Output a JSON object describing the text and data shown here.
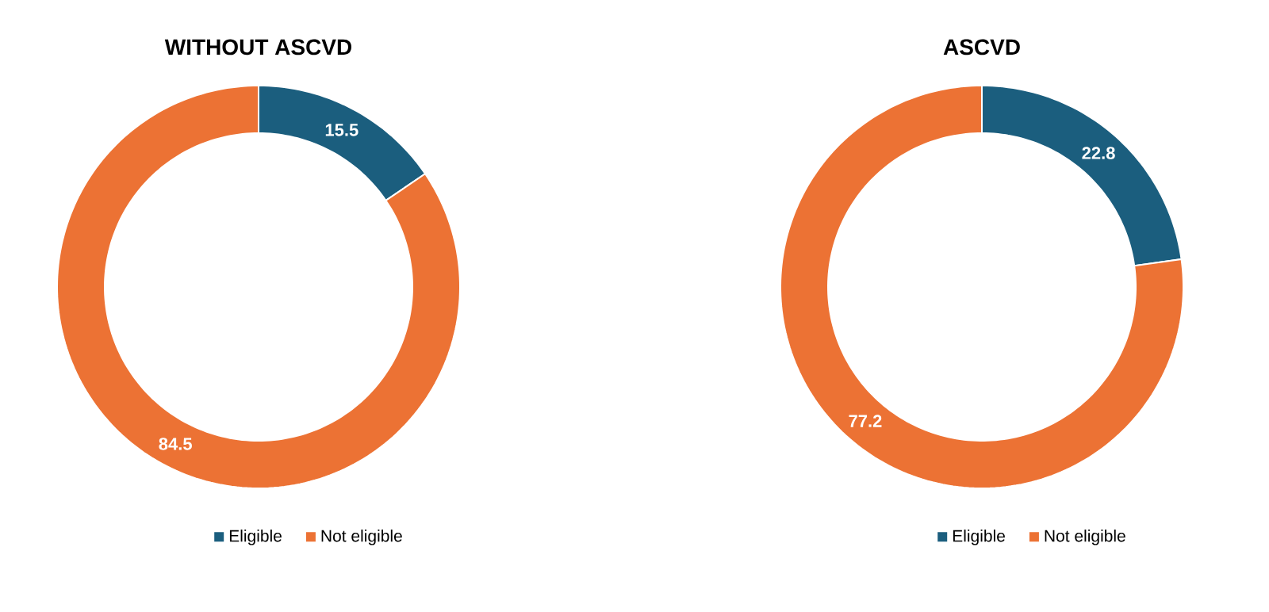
{
  "chart_data": [
    {
      "type": "donut",
      "title": "WITHOUT ASCVD",
      "categories": [
        "Eligible",
        "Not eligible"
      ],
      "values": [
        15.5,
        84.5
      ],
      "colors": [
        "#1b5e7e",
        "#ec7234"
      ],
      "data_labels": true,
      "legend": "bottom"
    },
    {
      "type": "donut",
      "title": "ASCVD",
      "categories": [
        "Eligible",
        "Not eligible"
      ],
      "values": [
        22.8,
        77.2
      ],
      "colors": [
        "#1b5e7e",
        "#ec7234"
      ],
      "data_labels": true,
      "legend": "bottom"
    }
  ]
}
